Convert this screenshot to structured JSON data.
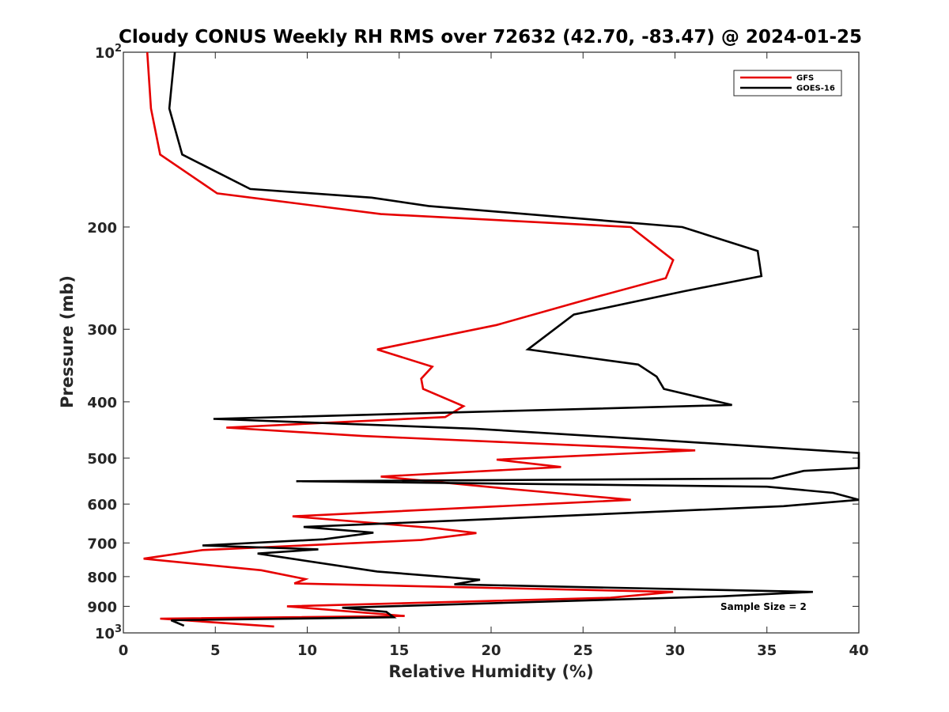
{
  "chart_data": {
    "type": "line",
    "title": "Cloudy CONUS Weekly RH RMS over 72632 (42.70, -83.47) @ 2024-01-25",
    "xlabel": "Relative Humidity (%)",
    "ylabel": "Pressure (mb)",
    "xlim": [
      0,
      40
    ],
    "ylim": [
      100,
      1000
    ],
    "y_scale": "log",
    "y_reversed": true,
    "x_ticks": [
      0,
      5,
      10,
      15,
      20,
      25,
      30,
      35,
      40
    ],
    "y_ticks": [
      {
        "value": 100,
        "label": "10",
        "sup": "2"
      },
      {
        "value": 200,
        "label": "200"
      },
      {
        "value": 300,
        "label": "300"
      },
      {
        "value": 400,
        "label": "400"
      },
      {
        "value": 500,
        "label": "500"
      },
      {
        "value": 600,
        "label": "600"
      },
      {
        "value": 700,
        "label": "700"
      },
      {
        "value": 800,
        "label": "800"
      },
      {
        "value": 900,
        "label": "900"
      },
      {
        "value": 1000,
        "label": "10",
        "sup": "3"
      }
    ],
    "grid": false,
    "legend_position": "top-right",
    "annotation": "Sample Size = 2",
    "series": [
      {
        "name": "GFS",
        "color": "#e60000",
        "points": [
          [
            1.3,
            100
          ],
          [
            1.5,
            125
          ],
          [
            2.0,
            150
          ],
          [
            5.1,
            175
          ],
          [
            14.0,
            190
          ],
          [
            27.6,
            200
          ],
          [
            29.9,
            228
          ],
          [
            29.5,
            245
          ],
          [
            25.5,
            265
          ],
          [
            20.3,
            295
          ],
          [
            13.8,
            325
          ],
          [
            16.8,
            348
          ],
          [
            16.2,
            365
          ],
          [
            16.3,
            380
          ],
          [
            18.5,
            407
          ],
          [
            17.5,
            425
          ],
          [
            5.6,
            443
          ],
          [
            13.0,
            458
          ],
          [
            31.1,
            485
          ],
          [
            20.3,
            503
          ],
          [
            23.8,
            518
          ],
          [
            14.0,
            538
          ],
          [
            21.0,
            565
          ],
          [
            27.6,
            590
          ],
          [
            9.2,
            630
          ],
          [
            16.9,
            660
          ],
          [
            19.2,
            673
          ],
          [
            16.2,
            692
          ],
          [
            4.3,
            720
          ],
          [
            1.1,
            745
          ],
          [
            7.5,
            780
          ],
          [
            9.9,
            808
          ],
          [
            9.3,
            822
          ],
          [
            29.9,
            850
          ],
          [
            26.5,
            870
          ],
          [
            8.9,
            900
          ],
          [
            15.3,
            935
          ],
          [
            2.0,
            945
          ],
          [
            8.2,
            975
          ]
        ]
      },
      {
        "name": "GOES-16",
        "color": "#000000",
        "points": [
          [
            2.8,
            100
          ],
          [
            2.5,
            125
          ],
          [
            3.2,
            150
          ],
          [
            6.9,
            172
          ],
          [
            13.5,
            178
          ],
          [
            16.6,
            184
          ],
          [
            30.4,
            200
          ],
          [
            34.5,
            220
          ],
          [
            34.7,
            243
          ],
          [
            30.5,
            258
          ],
          [
            24.5,
            283
          ],
          [
            22.0,
            325
          ],
          [
            28.0,
            345
          ],
          [
            29.0,
            362
          ],
          [
            29.4,
            380
          ],
          [
            33.1,
            405
          ],
          [
            4.9,
            428
          ],
          [
            19.1,
            445
          ],
          [
            28.9,
            465
          ],
          [
            40.0,
            490
          ],
          [
            40.0,
            520
          ],
          [
            37.0,
            526
          ],
          [
            35.3,
            542
          ],
          [
            9.4,
            548
          ],
          [
            35.0,
            560
          ],
          [
            38.6,
            574
          ],
          [
            40.0,
            590
          ],
          [
            35.9,
            605
          ],
          [
            18.4,
            640
          ],
          [
            9.8,
            657
          ],
          [
            13.6,
            672
          ],
          [
            10.9,
            690
          ],
          [
            4.3,
            707
          ],
          [
            10.6,
            718
          ],
          [
            7.3,
            730
          ],
          [
            13.8,
            784
          ],
          [
            19.4,
            810
          ],
          [
            18.0,
            825
          ],
          [
            37.5,
            850
          ],
          [
            32.5,
            865
          ],
          [
            11.9,
            905
          ],
          [
            14.3,
            920
          ],
          [
            14.7,
            940
          ],
          [
            2.6,
            951
          ],
          [
            3.3,
            972
          ]
        ]
      }
    ]
  }
}
